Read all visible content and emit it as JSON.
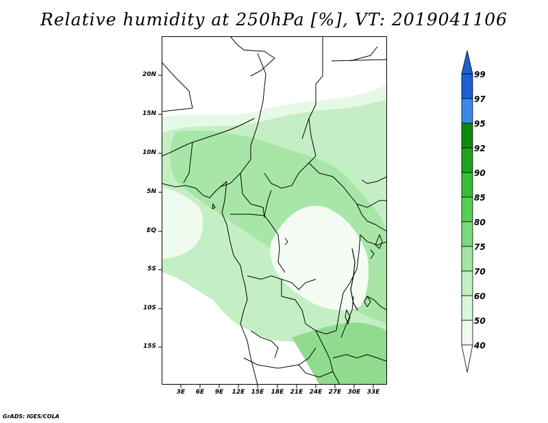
{
  "title": "Relative humidity at 250hPa [%], VT: 2019041106",
  "credit": "GrADS: IGES/COLA",
  "map": {
    "lat_labels": [
      "20N",
      "15N",
      "10N",
      "5N",
      "EQ",
      "5S",
      "10S",
      "15S"
    ],
    "lon_labels": [
      "3E",
      "6E",
      "9E",
      "12E",
      "15E",
      "18E",
      "21E",
      "24E",
      "27E",
      "30E",
      "33E"
    ]
  },
  "colorbar": {
    "levels": [
      "99",
      "97",
      "95",
      "92",
      "90",
      "85",
      "80",
      "75",
      "70",
      "60",
      "50",
      "40"
    ],
    "colors": {
      "above_97": "#1f5fd6",
      "95_97": "#3b8ae6",
      "92_95": "#0f8a0f",
      "90_92": "#1fa31f",
      "85_90": "#37bd37",
      "80_85": "#55d055",
      "75_80": "#7ed87e",
      "70_75": "#a2e6a2",
      "60_70": "#c2f0c2",
      "50_60": "#d9f7d9",
      "40_50": "#eefbee",
      "below_40": "#ffffff"
    }
  }
}
